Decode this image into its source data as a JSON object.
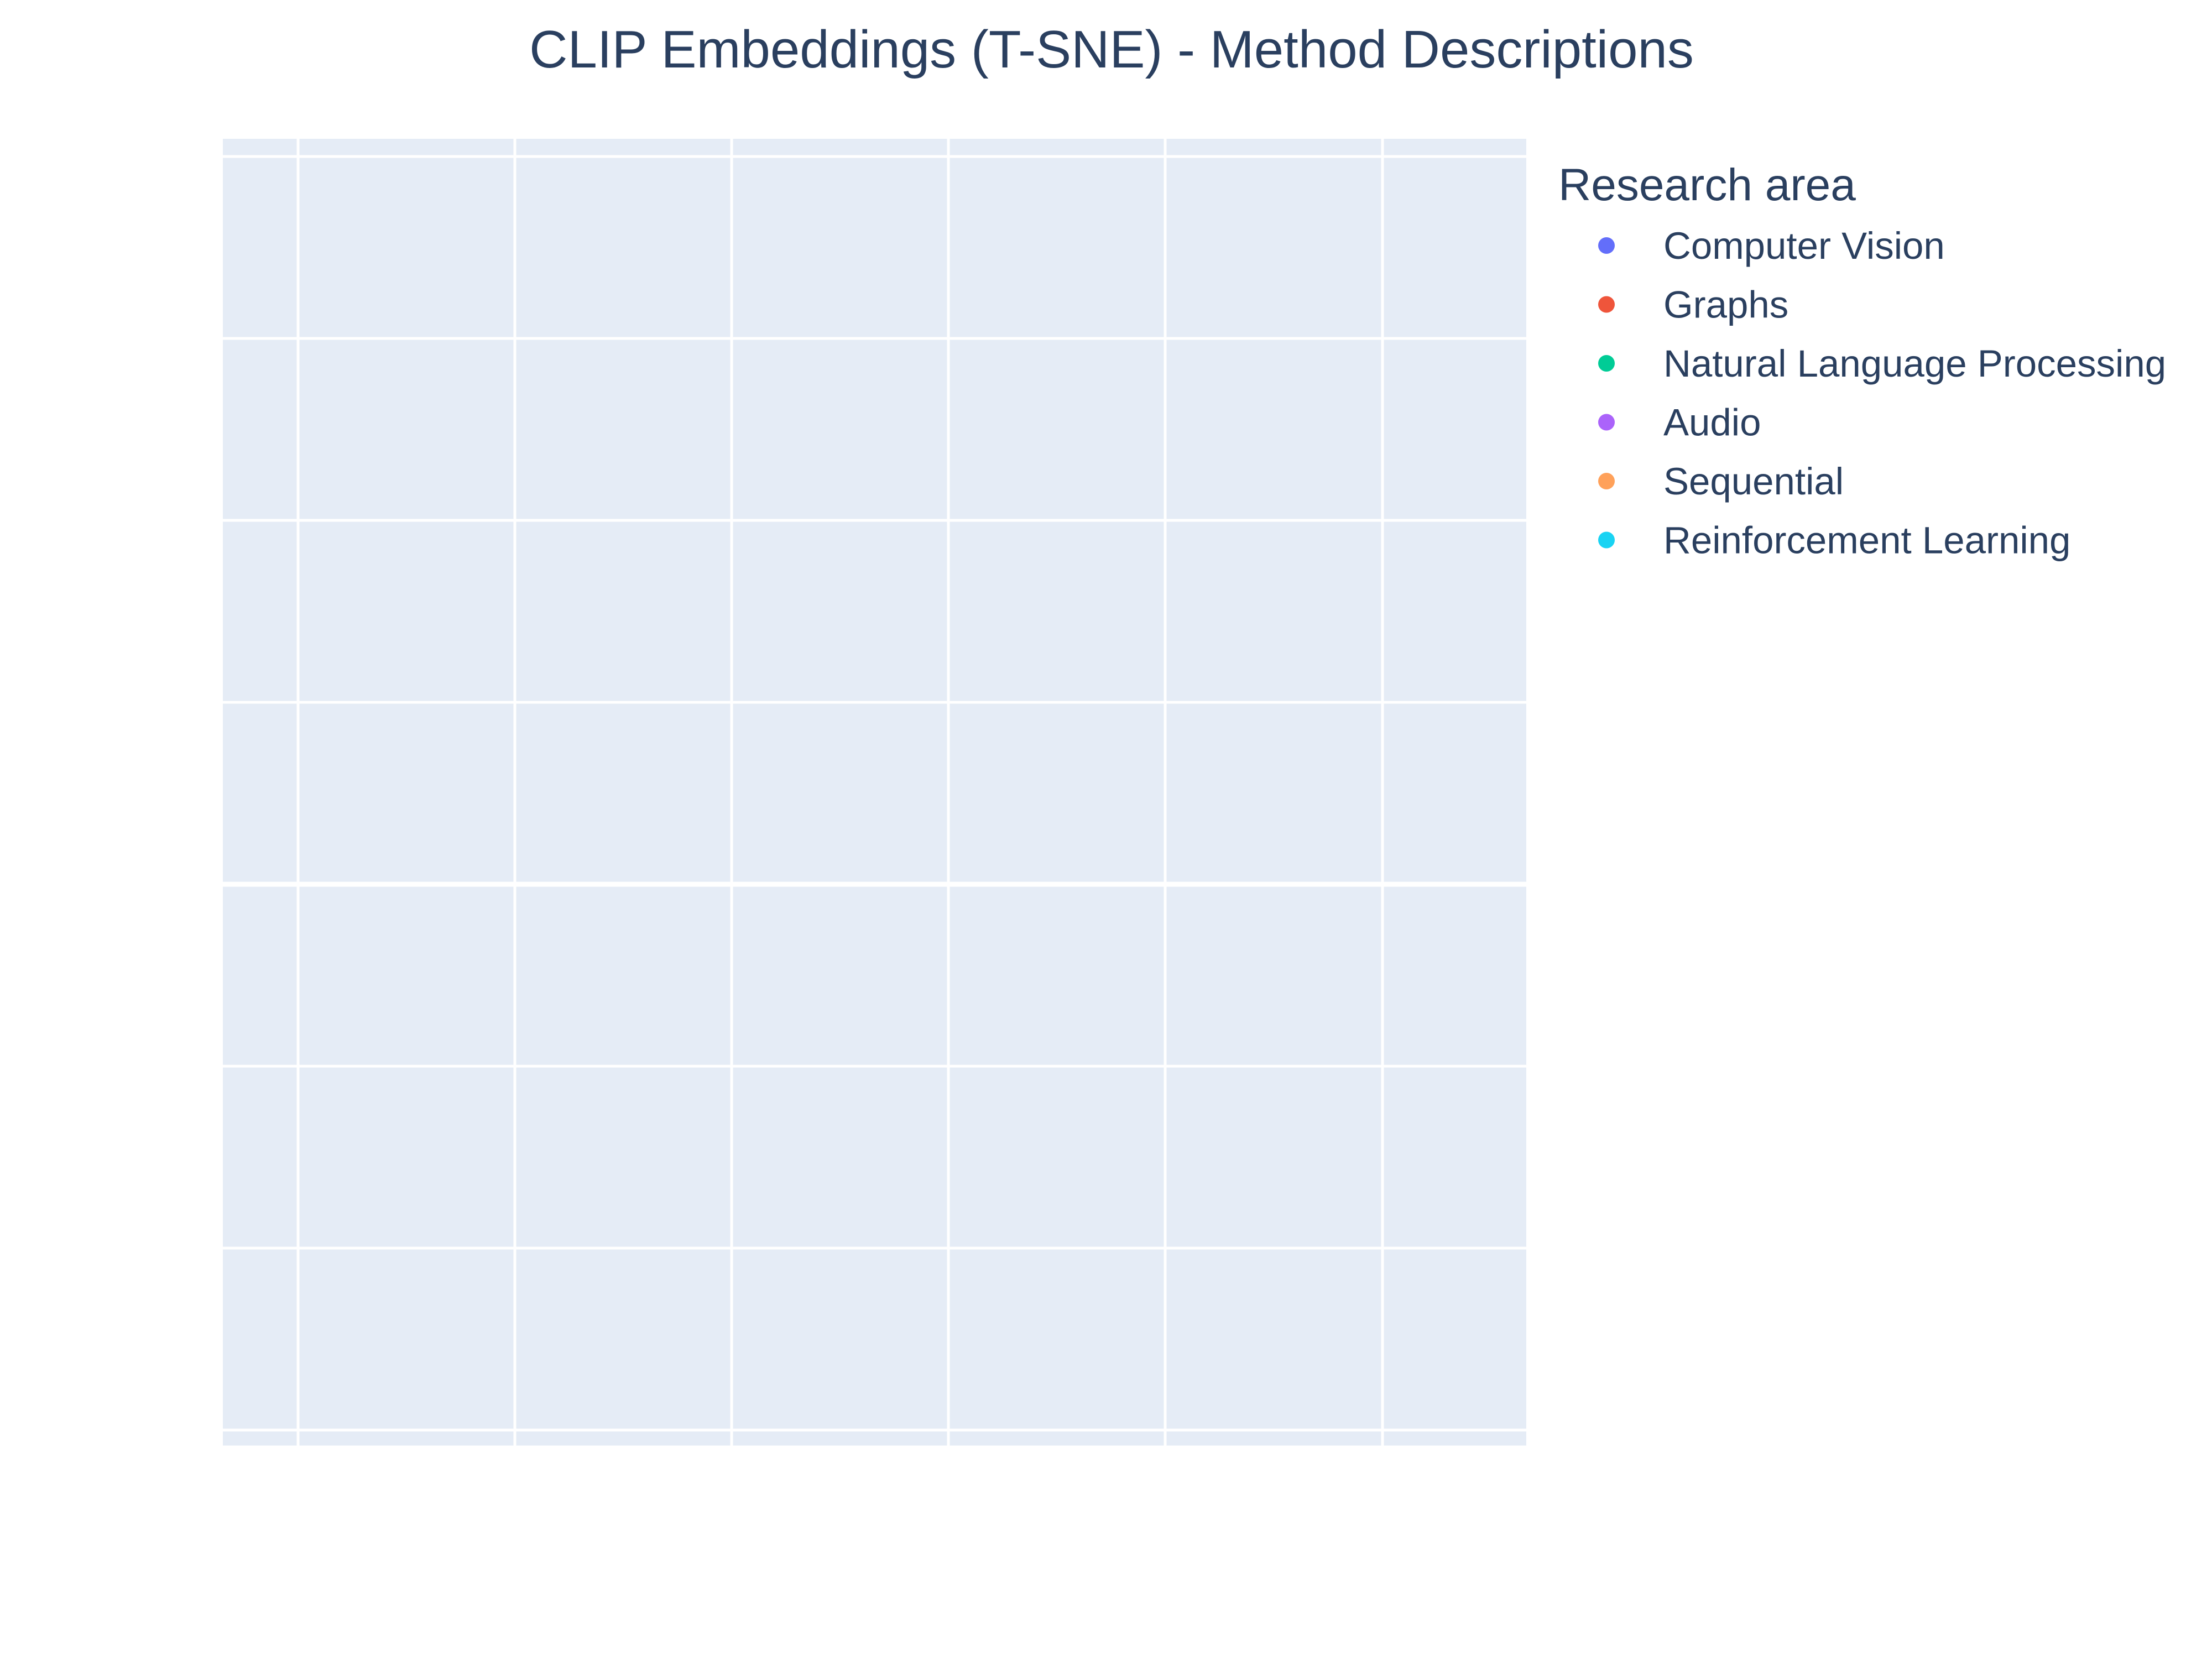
{
  "chart_data": {
    "type": "scatter",
    "title": "CLIP Embeddings (T-SNE) - Method Descriptions",
    "xlabel": "",
    "ylabel": "",
    "grid": true,
    "legend": {
      "title": "Research area",
      "placement": "right"
    },
    "series": [
      {
        "name": "Computer Vision",
        "color": "#636efa",
        "points": []
      },
      {
        "name": "Graphs",
        "color": "#ef553b",
        "points": []
      },
      {
        "name": "Natural Language Processing",
        "color": "#00cc96",
        "points": []
      },
      {
        "name": "Audio",
        "color": "#ab63fa",
        "points": []
      },
      {
        "name": "Sequential",
        "color": "#ffa15a",
        "points": []
      },
      {
        "name": "Reinforcement Learning",
        "color": "#19d3f3",
        "points": []
      }
    ],
    "plot_background": "#e5ecf6"
  }
}
